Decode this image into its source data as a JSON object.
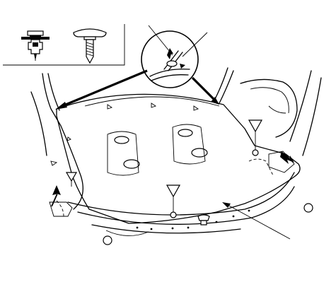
{
  "figure": {
    "style": "black-and-white line illustration",
    "colors": {
      "ink": "#000000",
      "paper": "#ffffff"
    },
    "icons": [
      "push-clip-icon",
      "screw-clip-icon",
      "magnifier-detail-icon",
      "clip-location-triangle-icon",
      "removal-direction-arrow-icon"
    ]
  }
}
